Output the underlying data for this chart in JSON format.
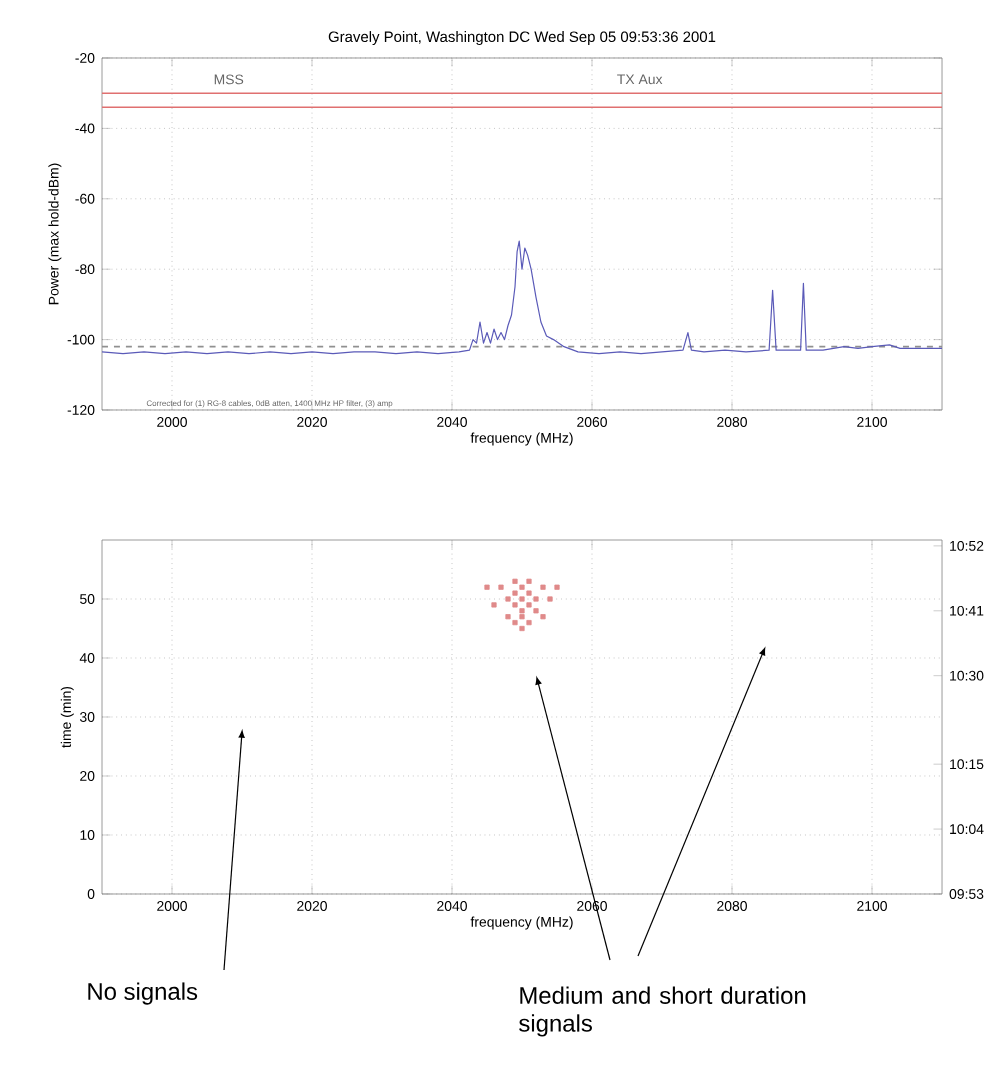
{
  "chart_data": [
    {
      "type": "line",
      "title": "Gravely Point, Washington DC    Wed Sep 05 09:53:36 2001",
      "xlabel": "frequency (MHz)",
      "ylabel": "Power (max hold-dBm)",
      "xlim": [
        1990,
        2110
      ],
      "ylim": [
        -120,
        -20
      ],
      "xticks": [
        2000,
        2020,
        2040,
        2060,
        2080,
        2100
      ],
      "yticks": [
        -120,
        -100,
        -80,
        -60,
        -40,
        -20
      ],
      "grid": true,
      "series": [
        {
          "color": "#5a5ab8",
          "x": [
            1990,
            1993,
            1996,
            1999,
            2002,
            2005,
            2008,
            2011,
            2014,
            2017,
            2020,
            2023,
            2026,
            2029,
            2032,
            2035,
            2038,
            2041,
            2042.5,
            2043,
            2043.5,
            2044,
            2044.5,
            2045,
            2045.5,
            2046,
            2046.5,
            2047,
            2047.5,
            2048,
            2048.5,
            2049,
            2049.3,
            2049.6,
            2050,
            2050.4,
            2050.8,
            2051.3,
            2052,
            2052.7,
            2053.5,
            2054.5,
            2056,
            2058,
            2061,
            2064,
            2067,
            2070,
            2073,
            2073.7,
            2074.2,
            2076,
            2079,
            2082,
            2085.3,
            2085.8,
            2086.3,
            2088,
            2089.8,
            2090.2,
            2090.6,
            2093,
            2096,
            2098,
            2100,
            2102.5,
            2104,
            2107,
            2110
          ],
          "values": [
            -103.5,
            -104,
            -103.5,
            -104,
            -103.5,
            -104,
            -103.5,
            -104,
            -103.5,
            -104,
            -103.5,
            -104,
            -103.5,
            -103.5,
            -104,
            -103.5,
            -104,
            -103.5,
            -103,
            -100,
            -101,
            -95,
            -101,
            -98,
            -101,
            -97,
            -100,
            -98,
            -100,
            -96,
            -93,
            -85,
            -75,
            -72,
            -80,
            -74,
            -76,
            -80,
            -88,
            -95,
            -99,
            -100,
            -102,
            -103.5,
            -104,
            -103.5,
            -104,
            -103.5,
            -103,
            -98,
            -103,
            -103.5,
            -103,
            -103.5,
            -103,
            -86,
            -103,
            -103,
            -103,
            -84,
            -103,
            -103,
            -102,
            -102.5,
            -102,
            -101.5,
            -102.5,
            -102.5,
            -102.5
          ]
        }
      ],
      "ref_lines": [
        {
          "axis": "y",
          "value": -30,
          "color": "#e07070"
        },
        {
          "axis": "y",
          "value": -34,
          "color": "#e07070"
        },
        {
          "axis": "y",
          "value": -102,
          "color": "#909090",
          "line_style": "dashed"
        }
      ],
      "annotations": [
        "MSS",
        "TX Aux",
        "Corrected for (1) RG-8 cables, 0dB atten, 1400 MHz HP filter, (3) amp"
      ]
    },
    {
      "type": "scatter",
      "xlabel": "frequency (MHz)",
      "ylabel": "time (min)",
      "xlim": [
        1990,
        2110
      ],
      "ylim": [
        0,
        60
      ],
      "xticks": [
        2000,
        2020,
        2040,
        2060,
        2080,
        2100
      ],
      "yticks": [
        0,
        10,
        20,
        30,
        40,
        50
      ],
      "y2lim": [
        9.8833,
        10.8833
      ],
      "y2ticks": [
        {
          "value": 9.8833,
          "label": "09:53"
        },
        {
          "value": 10.0667,
          "label": "10:04"
        },
        {
          "value": 10.25,
          "label": "10:15"
        },
        {
          "value": 10.5,
          "label": "10:30"
        },
        {
          "value": 10.6833,
          "label": "10:41"
        },
        {
          "value": 10.8667,
          "label": "10:52"
        }
      ],
      "grid": true,
      "marker": "square",
      "series": [
        {
          "color": "#e08a8a",
          "x": [
            2049,
            2051,
            2053,
            2045,
            2047,
            2050,
            2055,
            2049,
            2051,
            2048,
            2050,
            2052,
            2054,
            2046,
            2049,
            2051,
            2050,
            2052,
            2048,
            2050,
            2053,
            2049,
            2051,
            2050
          ],
          "values": [
            53,
            53,
            52,
            52,
            52,
            52,
            52,
            51,
            51,
            50,
            50,
            50,
            50,
            49,
            49,
            49,
            48,
            48,
            47,
            47,
            47,
            46,
            46,
            45
          ]
        }
      ],
      "annotations": [
        "No signals",
        "Medium and short duration signals"
      ]
    }
  ]
}
